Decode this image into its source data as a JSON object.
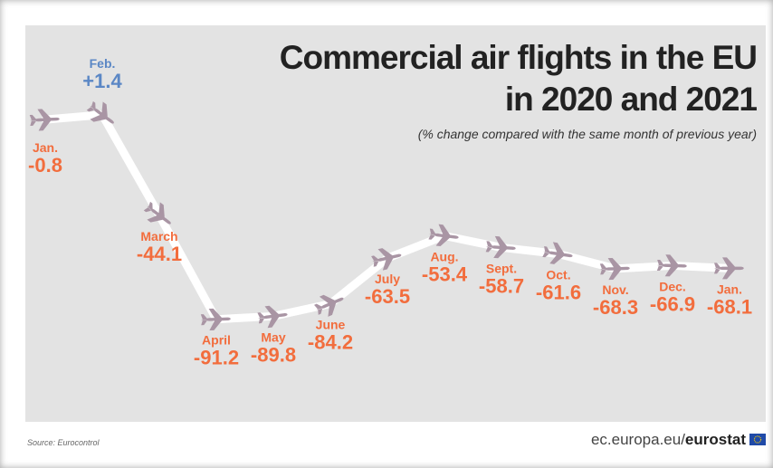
{
  "title_line1": "Commercial air flights in the EU",
  "title_line2": "in 2020 and 2021",
  "subtitle": "(% change compared with the same month of previous year)",
  "source": "Source: Eurocontrol",
  "footer": {
    "site": "ec.europa.eu/",
    "brand": "eurostat"
  },
  "icons": {
    "plane": "airplane-icon",
    "flag": "eu-flag-icon"
  },
  "colors": {
    "panel": "#e3e3e3",
    "line": "#ffffff",
    "plane": "#a995a4",
    "negative": "#f26d3d",
    "positive": "#5b87c5",
    "flag_blue": "#1f4aa8",
    "flag_stars": "#ffd200"
  },
  "chart_data": {
    "type": "line",
    "title": "Commercial air flights in the EU in 2020 and 2021",
    "subtitle": "(% change compared with the same month of previous year)",
    "categories": [
      "Jan.",
      "Feb.",
      "March",
      "April",
      "May",
      "June",
      "July",
      "Aug.",
      "Sept.",
      "Oct.",
      "Nov.",
      "Dec.",
      "Jan."
    ],
    "value_labels": [
      "-0.8",
      "+1.4",
      "-44.1",
      "-91.2",
      "-89.8",
      "-84.2",
      "-63.5",
      "-53.4",
      "-58.7",
      "-61.6",
      "-68.3",
      "-66.9",
      "-68.1"
    ],
    "values": [
      -0.8,
      1.4,
      -44.1,
      -91.2,
      -89.8,
      -84.2,
      -63.5,
      -53.4,
      -58.7,
      -61.6,
      -68.3,
      -66.9,
      -68.1
    ],
    "ylim": [
      -95,
      5
    ],
    "grid": false,
    "legend": "none"
  }
}
